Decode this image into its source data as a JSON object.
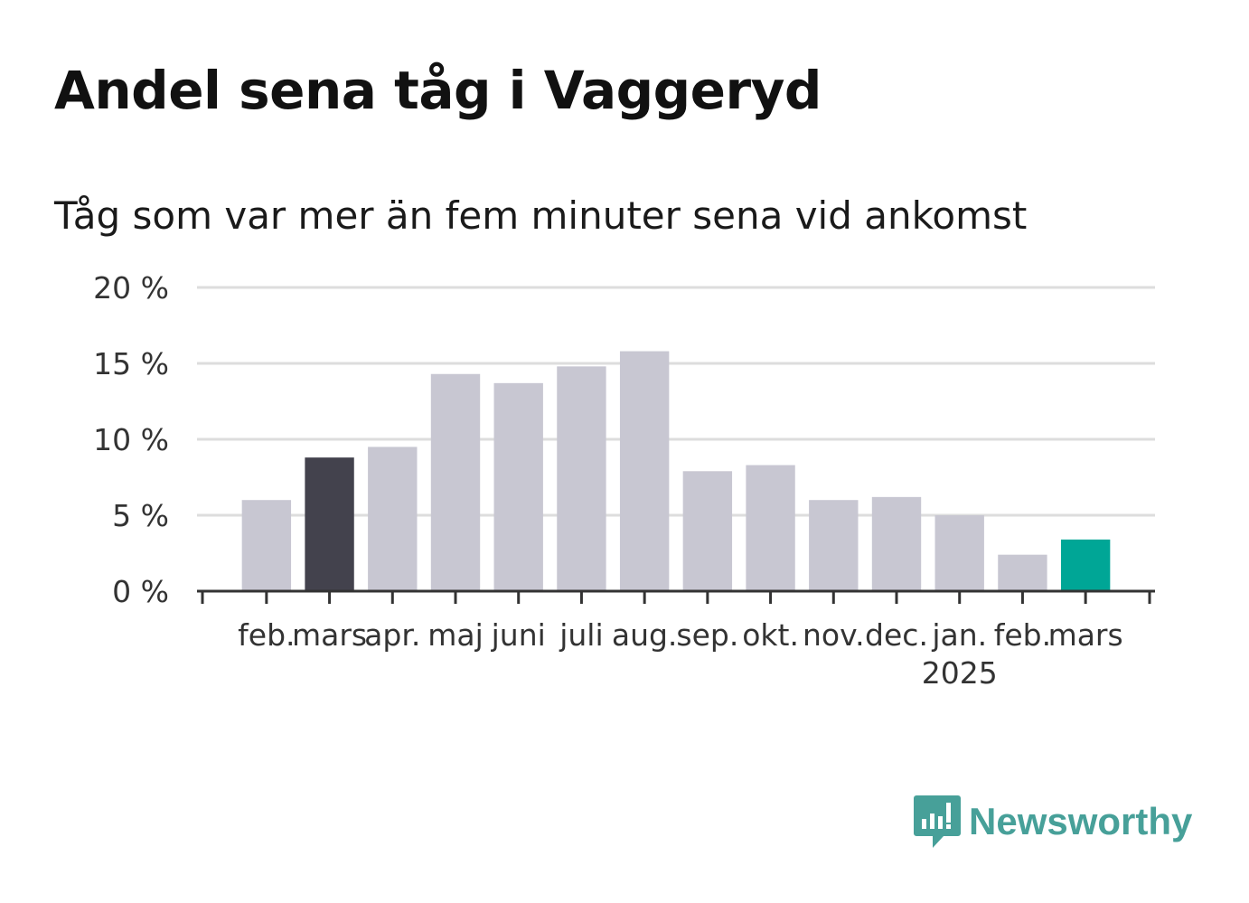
{
  "title": "Andel sena tåg i Vaggeryd",
  "subtitle": "Tåg som var mer än fem minuter sena vid ankomst",
  "brand": {
    "name": "Newsworthy",
    "color": "#47a099",
    "icon": "newsworthy-logo-icon"
  },
  "colors": {
    "default": "#c8c7d2",
    "highlight_dark": "#43424d",
    "highlight_accent": "#00a696",
    "axis": "#333333",
    "grid": "#dddddd"
  },
  "chart_data": {
    "type": "bar",
    "categories": [
      "feb.",
      "mars",
      "apr.",
      "maj",
      "juni",
      "juli",
      "aug.",
      "sep.",
      "okt.",
      "nov.",
      "dec.",
      "jan.",
      "feb.",
      "mars"
    ],
    "year_labels": [
      {
        "index": 11,
        "label": "2025"
      }
    ],
    "values": [
      6.0,
      8.8,
      9.5,
      14.3,
      13.7,
      14.8,
      15.8,
      7.9,
      8.3,
      6.0,
      6.2,
      5.0,
      2.4,
      3.4
    ],
    "highlights": {
      "1": "highlight_dark",
      "13": "highlight_accent"
    },
    "ylim": [
      0,
      20
    ],
    "yticks": [
      0,
      5,
      10,
      15,
      20
    ],
    "ytick_labels": [
      "0 %",
      "5 %",
      "10 %",
      "15 %",
      "20 %"
    ],
    "xlabel": "",
    "ylabel": "",
    "grid": true,
    "legend": "none"
  }
}
